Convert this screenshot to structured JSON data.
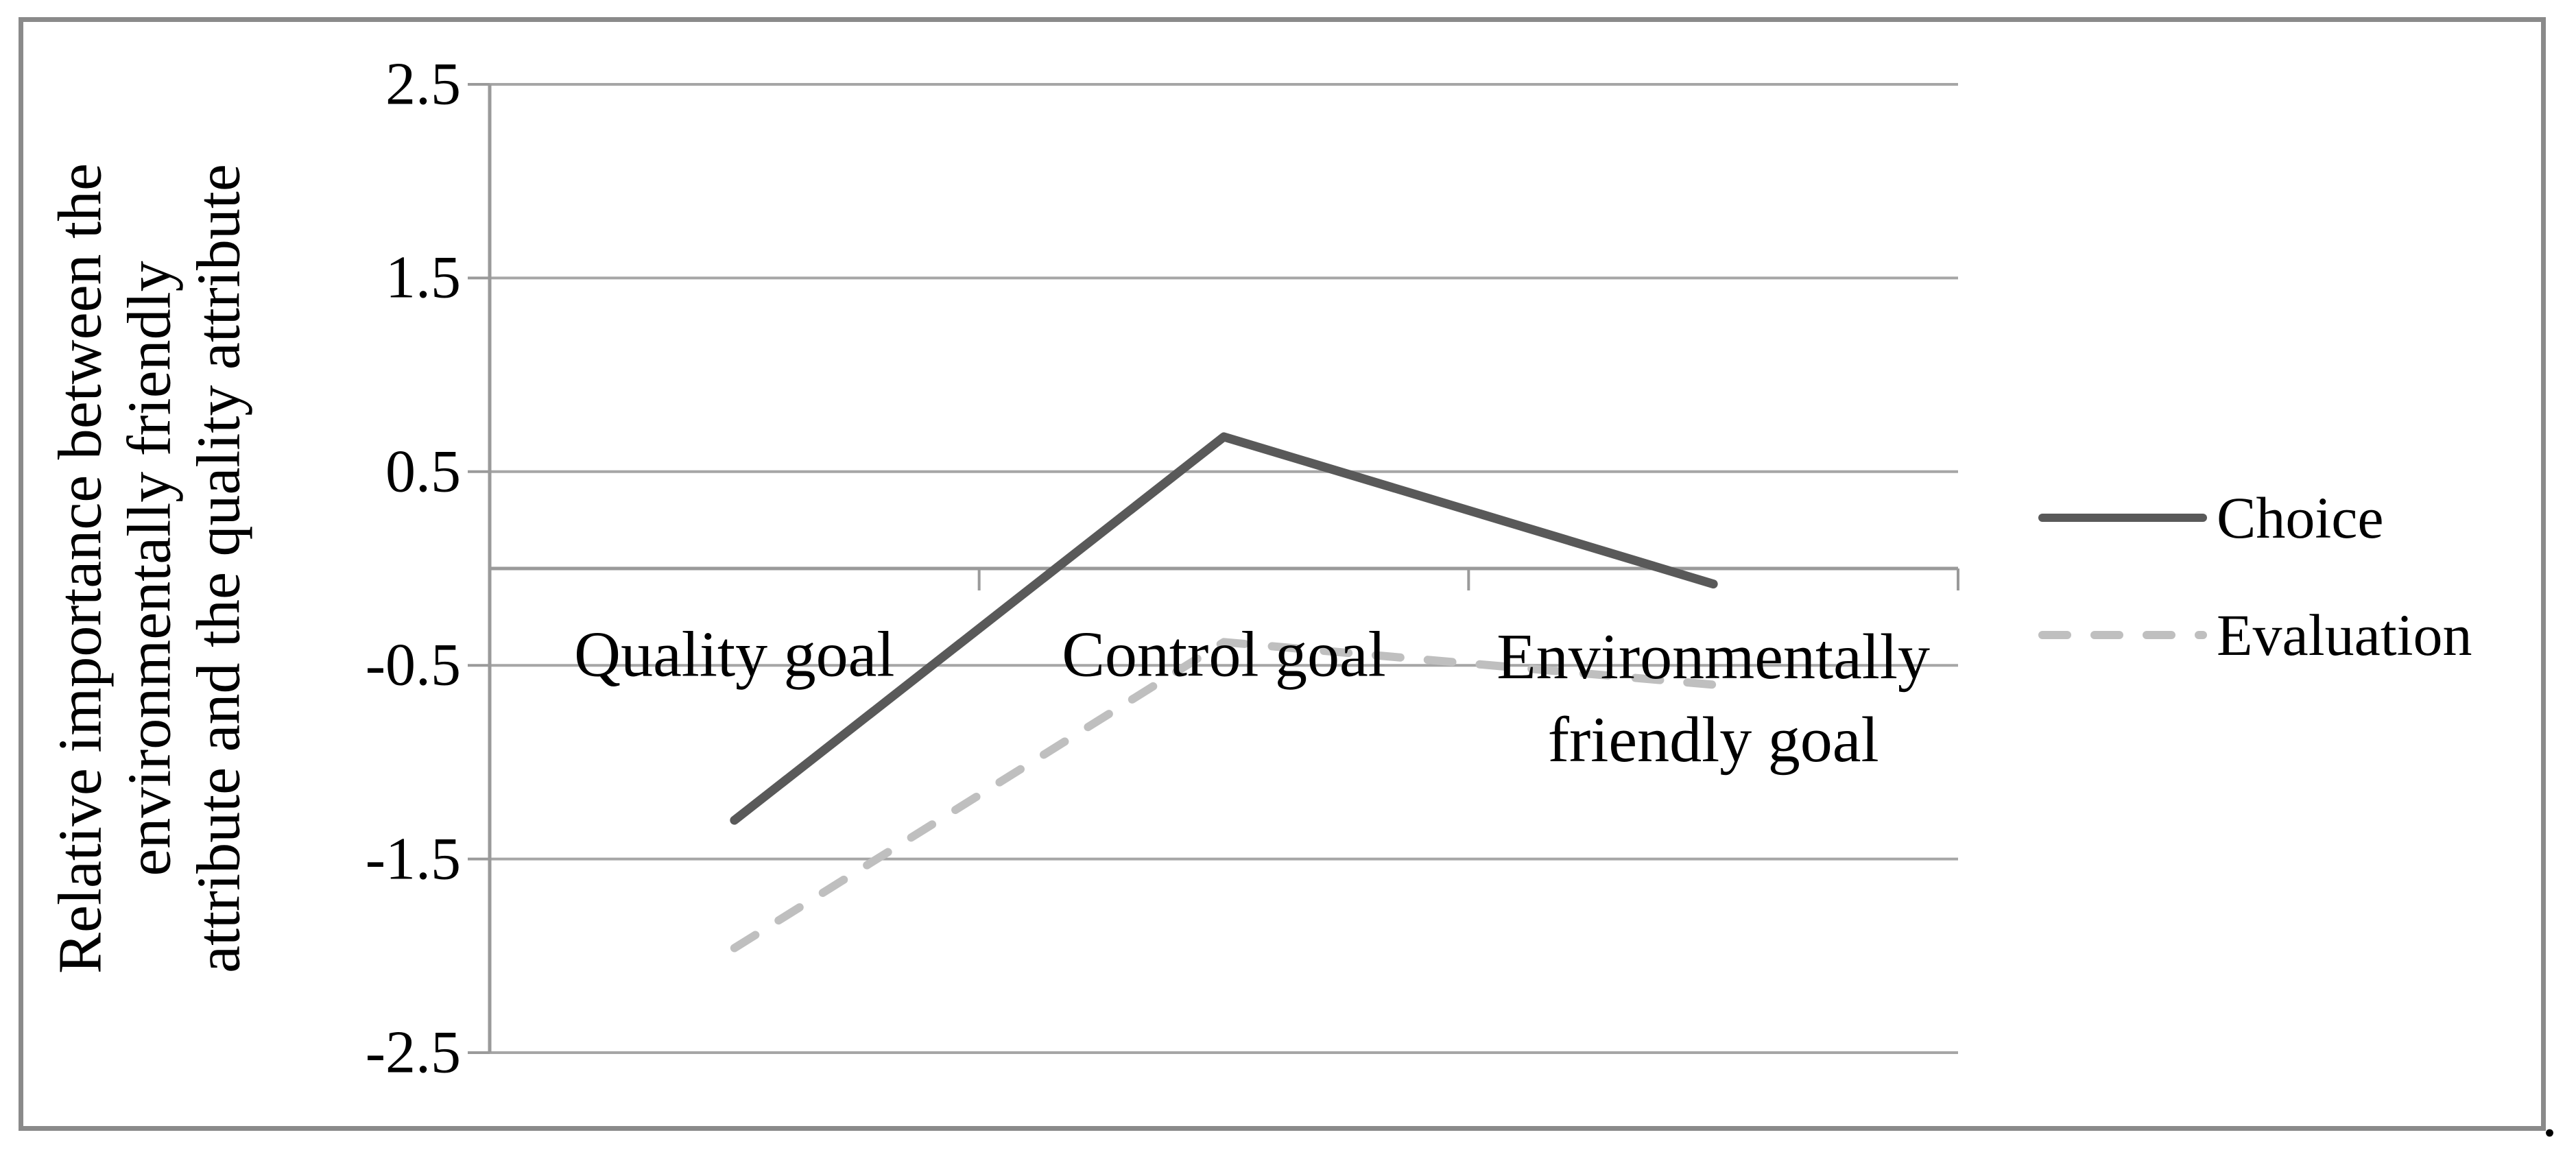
{
  "figure": {
    "caption_period": ".",
    "frame_border_color": "#8a8a8a",
    "background": "#ffffff"
  },
  "chart_data": {
    "type": "line",
    "title": "",
    "xlabel": "",
    "ylabel": "Relative importance between the environmentally friendly attribute and the quality attribute",
    "ylabel_lines": [
      "Relative importance between the",
      "environmentally friendly",
      "attribute and the quality attribute"
    ],
    "categories": [
      "Quality goal",
      "Control goal",
      "Environmentally friendly goal"
    ],
    "series": [
      {
        "name": "Choice",
        "line_style": "solid",
        "color": "#595959",
        "values": [
          -1.3,
          0.68,
          -0.08
        ]
      },
      {
        "name": "Evaluation",
        "line_style": "dashed",
        "color": "#bfbfbf",
        "values": [
          -1.96,
          -0.38,
          -0.6
        ]
      }
    ],
    "ylim": [
      -2.5,
      2.5
    ],
    "yticks": [
      2.5,
      1.5,
      0.5,
      -0.5,
      -1.5,
      -2.5
    ],
    "ytick_labels": [
      "2.5",
      "1.5",
      "0.5",
      "-0.5",
      "-1.5",
      "-2.5"
    ],
    "grid": "horizontal-major",
    "legend_position": "right-middle",
    "colors": {
      "gridline": "#a6a6a6",
      "axis": "#9a9a9a",
      "text": "#000000"
    }
  }
}
